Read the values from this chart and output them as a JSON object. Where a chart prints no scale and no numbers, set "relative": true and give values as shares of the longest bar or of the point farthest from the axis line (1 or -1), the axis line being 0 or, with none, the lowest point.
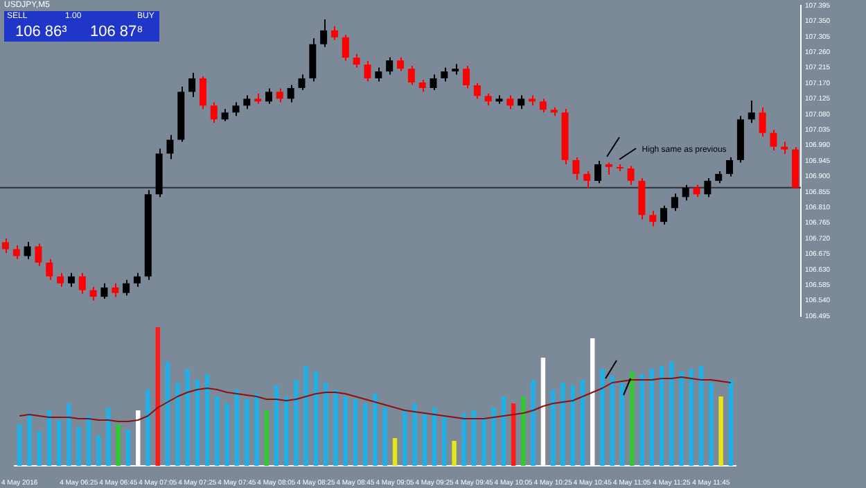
{
  "chart_data": [
    {
      "type": "candlestick",
      "title": "USDJPY,M5",
      "categories": [
        null,
        null,
        null,
        null,
        null,
        null,
        null,
        null,
        null,
        null,
        null,
        null,
        null,
        null,
        null,
        null,
        null,
        null,
        null,
        null,
        null,
        null,
        null,
        null,
        null,
        null,
        null,
        null,
        null,
        null,
        null,
        null,
        null,
        null,
        null,
        null,
        null,
        null,
        null,
        null,
        null,
        null,
        null,
        null,
        null,
        null,
        null,
        null,
        null,
        null,
        null,
        null,
        null,
        null,
        null,
        null,
        null,
        null,
        null,
        null,
        null,
        null,
        null,
        null,
        null,
        null,
        null,
        null,
        null,
        null,
        null,
        null,
        null
      ],
      "ohlc": [
        [
          106.709,
          106.72,
          106.678,
          106.689
        ],
        [
          106.689,
          106.7,
          106.66,
          106.669
        ],
        [
          106.669,
          106.71,
          106.66,
          106.697
        ],
        [
          106.697,
          106.705,
          106.64,
          106.65
        ],
        [
          106.65,
          106.66,
          106.6,
          106.61
        ],
        [
          106.61,
          106.62,
          106.58,
          106.59
        ],
        [
          106.59,
          106.62,
          106.58,
          106.61
        ],
        [
          106.61,
          106.62,
          106.56,
          106.57
        ],
        [
          106.57,
          106.58,
          106.54,
          106.551
        ],
        [
          106.551,
          106.59,
          106.545,
          106.578
        ],
        [
          106.578,
          106.59,
          106.55,
          106.562
        ],
        [
          106.562,
          106.6,
          106.555,
          106.59
        ],
        [
          106.59,
          106.62,
          106.58,
          106.61
        ],
        [
          106.61,
          106.86,
          106.6,
          106.848
        ],
        [
          106.848,
          106.98,
          106.84,
          106.966
        ],
        [
          106.966,
          107.02,
          106.95,
          107.006
        ],
        [
          107.006,
          107.16,
          107.0,
          107.145
        ],
        [
          107.145,
          107.2,
          107.13,
          107.184
        ],
        [
          107.184,
          107.19,
          107.095,
          107.105
        ],
        [
          107.105,
          107.115,
          107.055,
          107.065
        ],
        [
          107.065,
          107.095,
          107.06,
          107.085
        ],
        [
          107.085,
          107.115,
          107.075,
          107.105
        ],
        [
          107.105,
          107.135,
          107.095,
          107.125
        ],
        [
          107.125,
          107.14,
          107.11,
          107.117
        ],
        [
          107.117,
          107.155,
          107.11,
          107.145
        ],
        [
          107.145,
          107.155,
          107.115,
          107.125
        ],
        [
          107.125,
          107.165,
          107.115,
          107.156
        ],
        [
          107.156,
          107.195,
          107.15,
          107.184
        ],
        [
          107.184,
          107.3,
          107.175,
          107.283
        ],
        [
          107.283,
          107.355,
          107.275,
          107.323
        ],
        [
          107.323,
          107.335,
          107.295,
          107.303
        ],
        [
          107.303,
          107.31,
          107.235,
          107.244
        ],
        [
          107.244,
          107.255,
          107.215,
          107.224
        ],
        [
          107.224,
          107.235,
          107.175,
          107.184
        ],
        [
          107.184,
          107.215,
          107.175,
          107.204
        ],
        [
          107.204,
          107.245,
          107.195,
          107.236
        ],
        [
          107.236,
          107.245,
          107.205,
          107.212
        ],
        [
          107.212,
          107.22,
          107.165,
          107.172
        ],
        [
          107.172,
          107.18,
          107.145,
          107.156
        ],
        [
          107.156,
          107.195,
          107.15,
          107.184
        ],
        [
          107.184,
          107.215,
          107.175,
          107.204
        ],
        [
          107.204,
          107.225,
          107.195,
          107.212
        ],
        [
          107.212,
          107.22,
          107.155,
          107.164
        ],
        [
          107.164,
          107.17,
          107.125,
          107.133
        ],
        [
          107.133,
          107.14,
          107.105,
          107.117
        ],
        [
          107.117,
          107.135,
          107.11,
          107.125
        ],
        [
          107.125,
          107.135,
          107.095,
          107.105
        ],
        [
          107.105,
          107.135,
          107.095,
          107.125
        ],
        [
          107.125,
          107.135,
          107.105,
          107.117
        ],
        [
          107.117,
          107.125,
          107.085,
          107.093
        ],
        [
          107.093,
          107.1,
          107.075,
          107.085
        ],
        [
          107.085,
          107.095,
          106.935,
          106.947
        ],
        [
          106.947,
          106.955,
          106.89,
          106.907
        ],
        [
          106.907,
          106.915,
          106.865,
          106.887
        ],
        [
          106.887,
          106.945,
          106.88,
          106.935
        ],
        [
          106.935,
          106.94,
          106.905,
          106.927
        ],
        [
          106.927,
          106.935,
          106.915,
          106.923
        ],
        [
          106.923,
          106.93,
          106.875,
          106.887
        ],
        [
          106.887,
          106.895,
          106.775,
          106.788
        ],
        [
          106.788,
          106.8,
          106.755,
          106.768
        ],
        [
          106.768,
          106.815,
          106.76,
          106.808
        ],
        [
          106.808,
          106.85,
          106.8,
          106.84
        ],
        [
          106.84,
          106.875,
          106.83,
          106.867
        ],
        [
          106.867,
          106.875,
          106.84,
          106.848
        ],
        [
          106.848,
          106.895,
          106.84,
          106.887
        ],
        [
          106.887,
          106.915,
          106.88,
          106.907
        ],
        [
          106.907,
          106.955,
          106.9,
          106.947
        ],
        [
          106.947,
          107.075,
          106.94,
          107.065
        ],
        [
          107.065,
          107.12,
          107.055,
          107.085
        ],
        [
          107.085,
          107.1,
          107.015,
          107.026
        ],
        [
          107.026,
          107.035,
          106.975,
          106.986
        ],
        [
          106.986,
          107.0,
          106.965,
          106.978
        ],
        [
          106.978,
          106.985,
          106.865,
          106.867
        ]
      ],
      "ylim": [
        106.495,
        107.395
      ],
      "yticks": [
        106.495,
        {
          "value": 106.54,
          "label": "106.540"
        },
        106.585,
        {
          "value": 106.63,
          "label": "106.630"
        },
        106.675,
        {
          "value": 106.72,
          "label": "106.720"
        },
        106.765,
        {
          "value": 106.81,
          "label": "106.810"
        },
        106.855,
        {
          "value": 106.9,
          "label": "106.900"
        },
        106.945,
        {
          "value": 106.99,
          "label": "106.990"
        },
        107.035,
        {
          "value": 107.08,
          "label": "107.080"
        },
        107.125,
        {
          "value": 107.17,
          "label": "107.170"
        },
        107.215,
        {
          "value": 107.26,
          "label": "107.260"
        },
        107.305,
        {
          "value": 107.35,
          "label": "107.350"
        },
        107.395
      ],
      "ref_lines": [
        {
          "axis": "y",
          "value": 106.867,
          "color": "#2b313a"
        }
      ],
      "annotations": [
        "High same as previous",
        "SELL",
        "BUY",
        "1.00",
        "106 86³",
        "106 87⁸"
      ],
      "tick_labels": "y",
      "grid": false,
      "legend": false
    },
    {
      "type": "bar",
      "relative": true,
      "tick_labels": "x",
      "grid": false,
      "legend": false,
      "categories": [
        "4 May 2016",
        null,
        null,
        null,
        null,
        null,
        "4 May 06:25",
        null,
        null,
        null,
        "4 May 06:45",
        null,
        null,
        null,
        "4 May 07:05",
        null,
        null,
        null,
        "4 May 07:25",
        null,
        null,
        null,
        "4 May 07:45",
        null,
        null,
        null,
        "4 May 08:05",
        null,
        null,
        null,
        "4 May 08:25",
        null,
        null,
        null,
        "4 May 08:45",
        null,
        null,
        null,
        "4 May 09:05",
        null,
        null,
        null,
        "4 May 09:25",
        null,
        null,
        null,
        "4 May 09:45",
        null,
        null,
        null,
        "4 May 10:05",
        null,
        null,
        null,
        "4 May 10:25",
        null,
        null,
        null,
        "4 May 10:45",
        null,
        null,
        null,
        "4 May 11:05",
        null,
        null,
        null,
        "4 May 11:25",
        null,
        null,
        null,
        "4 May 11:45",
        null,
        null
      ],
      "series": [
        {
          "type": "bar",
          "values": [
            0.3,
            0.38,
            0.25,
            0.4,
            0.33,
            0.45,
            0.28,
            0.36,
            0.22,
            0.42,
            0.3,
            0.26,
            0.4,
            0.55,
            1.0,
            0.75,
            0.6,
            0.7,
            0.62,
            0.66,
            0.5,
            0.45,
            0.55,
            0.48,
            0.52,
            0.4,
            0.58,
            0.5,
            0.62,
            0.72,
            0.68,
            0.6,
            0.55,
            0.5,
            0.48,
            0.45,
            0.52,
            0.42,
            0.2,
            0.4,
            0.45,
            0.38,
            0.42,
            0.35,
            0.18,
            0.38,
            0.4,
            0.35,
            0.42,
            0.5,
            0.45,
            0.5,
            0.62,
            0.78,
            0.55,
            0.6,
            0.58,
            0.62,
            0.92,
            0.7,
            0.65,
            0.6,
            0.68,
            0.66,
            0.7,
            0.72,
            0.75,
            0.68,
            0.7,
            0.72,
            0.6,
            0.5,
            0.62
          ],
          "colors": [
            "#1fb0e8",
            "#1fb0e8",
            "#1fb0e8",
            "#1fb0e8",
            "#1fb0e8",
            "#1fb0e8",
            "#1fb0e8",
            "#1fb0e8",
            "#1fb0e8",
            "#1fb0e8",
            "#32c832",
            "#1fb0e8",
            "#ffffff",
            "#1fb0e8",
            "#ff1a1a",
            "#1fb0e8",
            "#1fb0e8",
            "#1fb0e8",
            "#1fb0e8",
            "#1fb0e8",
            "#1fb0e8",
            "#1fb0e8",
            "#1fb0e8",
            "#1fb0e8",
            "#1fb0e8",
            "#32c832",
            "#1fb0e8",
            "#1fb0e8",
            "#1fb0e8",
            "#1fb0e8",
            "#1fb0e8",
            "#1fb0e8",
            "#1fb0e8",
            "#1fb0e8",
            "#1fb0e8",
            "#1fb0e8",
            "#1fb0e8",
            "#1fb0e8",
            "#e6e619",
            "#1fb0e8",
            "#1fb0e8",
            "#1fb0e8",
            "#1fb0e8",
            "#1fb0e8",
            "#e6e619",
            "#1fb0e8",
            "#1fb0e8",
            "#1fb0e8",
            "#1fb0e8",
            "#1fb0e8",
            "#ff1a1a",
            "#32c832",
            "#1fb0e8",
            "#ffffff",
            "#1fb0e8",
            "#1fb0e8",
            "#1fb0e8",
            "#1fb0e8",
            "#ffffff",
            "#1fb0e8",
            "#1fb0e8",
            "#1fb0e8",
            "#32c832",
            "#1fb0e8",
            "#1fb0e8",
            "#1fb0e8",
            "#1fb0e8",
            "#1fb0e8",
            "#1fb0e8",
            "#1fb0e8",
            "#1fb0e8",
            "#e6e619",
            "#1fb0e8"
          ]
        },
        {
          "type": "line",
          "color": "#8b1010",
          "values": [
            0.36,
            0.37,
            0.36,
            0.35,
            0.35,
            0.35,
            0.34,
            0.34,
            0.33,
            0.33,
            0.32,
            0.32,
            0.33,
            0.36,
            0.42,
            0.46,
            0.5,
            0.53,
            0.55,
            0.56,
            0.55,
            0.53,
            0.52,
            0.51,
            0.5,
            0.48,
            0.48,
            0.47,
            0.48,
            0.5,
            0.52,
            0.53,
            0.53,
            0.52,
            0.5,
            0.48,
            0.46,
            0.44,
            0.42,
            0.4,
            0.39,
            0.38,
            0.37,
            0.36,
            0.35,
            0.34,
            0.34,
            0.34,
            0.35,
            0.36,
            0.37,
            0.38,
            0.4,
            0.43,
            0.45,
            0.46,
            0.47,
            0.5,
            0.53,
            0.56,
            0.6,
            0.61,
            0.62,
            0.62,
            0.62,
            0.63,
            0.63,
            0.64,
            0.63,
            0.62,
            0.62,
            0.61,
            0.6
          ]
        }
      ]
    }
  ]
}
